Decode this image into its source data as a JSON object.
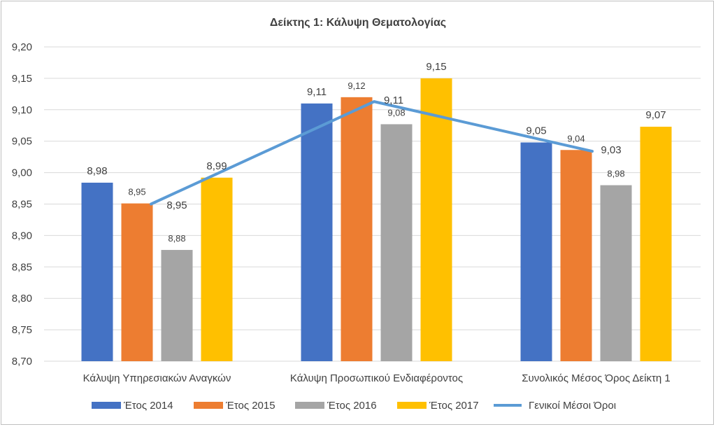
{
  "chart_data": {
    "type": "bar",
    "title": "Δείκτης 1: Κάλυψη Θεματολογίας",
    "categories": [
      "Κάλυψη Υπηρεσιακών Αναγκών",
      "Κάλυψη Προσωπικού Ενδιαφέροντος",
      "Συνολικός Μέσος Όρος Δείκτη 1"
    ],
    "ylim": [
      8.7,
      9.2
    ],
    "yticks": [
      "8,70",
      "8,75",
      "8,80",
      "8,85",
      "8,90",
      "8,95",
      "9,00",
      "9,05",
      "9,10",
      "9,15",
      "9,20"
    ],
    "grid": true,
    "legend_position": "bottom",
    "series": [
      {
        "name": "Έτος 2014",
        "color": "#4472C4",
        "values": [
          8.984,
          9.11,
          9.048
        ],
        "labels": [
          "8,98",
          "9,11",
          "9,05"
        ]
      },
      {
        "name": "Έτος 2015",
        "color": "#ED7D31",
        "values": [
          8.951,
          9.12,
          9.036
        ],
        "labels": [
          "8,95",
          "9,12",
          "9,04"
        ]
      },
      {
        "name": "Έτος 2016",
        "color": "#A5A5A5",
        "values": [
          8.877,
          9.077,
          8.98
        ],
        "labels": [
          "8,88",
          "9,08",
          "8,98"
        ]
      },
      {
        "name": "Έτος 2017",
        "color": "#FFC000",
        "values": [
          8.992,
          9.15,
          9.073
        ],
        "labels": [
          "8,99",
          "9,15",
          "9,07"
        ]
      }
    ],
    "line_series": {
      "name": "Γενικοί Μέσοι Όροι",
      "color": "#5B9BD5",
      "values": [
        8.95,
        9.113,
        9.034
      ],
      "labels": [
        "8,95",
        "9,11",
        "9,03"
      ]
    }
  }
}
